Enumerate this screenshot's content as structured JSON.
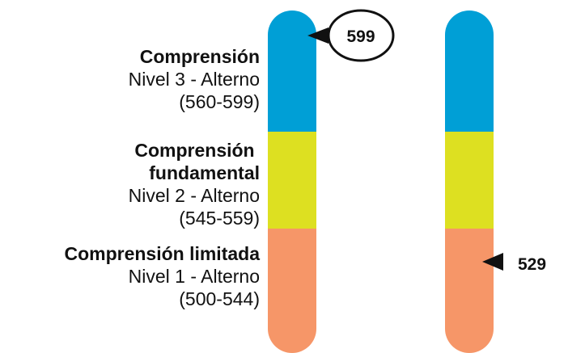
{
  "levels": [
    {
      "title_line1": "Comprensión",
      "title_line2": "",
      "level": "Nivel 3 - Alterno",
      "range": "(560-599)",
      "color": "#009fd6"
    },
    {
      "title_line1": "Comprensión ",
      "title_line2": "fundamental",
      "level": "Nivel 2 - Alterno",
      "range": "(545-559)",
      "color": "#dde021"
    },
    {
      "title_line1": "Comprensión limitada",
      "title_line2": "",
      "level": "Nivel 1 - Alterno",
      "range": "(500-544)",
      "color": "#f69668"
    }
  ],
  "scores": {
    "circled": "599",
    "pointer": "529"
  }
}
